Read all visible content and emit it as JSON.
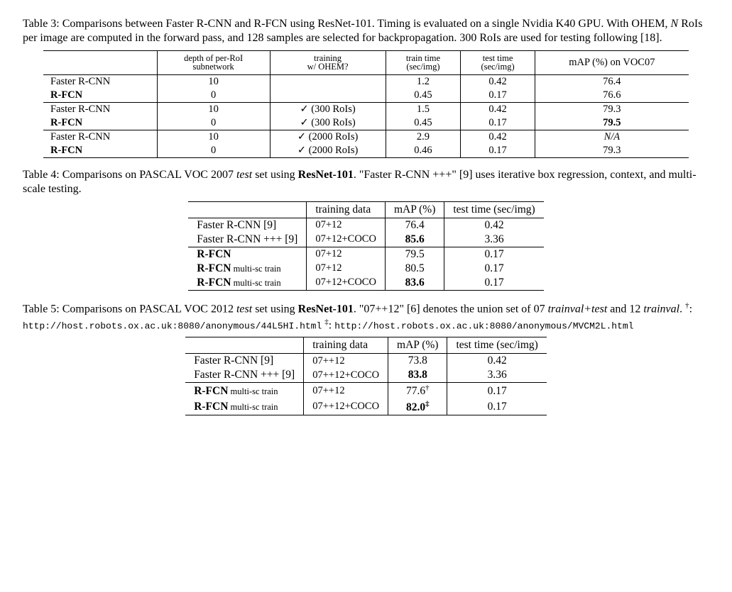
{
  "table3": {
    "caption_parts": {
      "label": "Table 3:",
      "text_a": " Comparisons between Faster R-CNN and R-FCN using ResNet-101. Timing is evaluated on a single Nvidia K40 GPU. With OHEM, ",
      "N": "N",
      "text_b": " RoIs per image are computed in the forward pass, and 128 samples are selected for backpropagation. 300 RoIs are used for testing following [18]."
    },
    "columns": {
      "depth_l1": "depth of per-RoI",
      "depth_l2": "subnetwork",
      "ohem_l1": "training",
      "ohem_l2": "w/ OHEM?",
      "train_l1": "train time",
      "train_l2": "(sec/img)",
      "test_l1": "test time",
      "test_l2": "(sec/img)",
      "map": "mAP (%) on VOC07"
    },
    "groups": [
      {
        "rows": [
          {
            "method": "Faster R-CNN",
            "bold": false,
            "depth": "10",
            "ohem": "",
            "train": "1.2",
            "test": "0.42",
            "map": "76.4",
            "map_dag": "",
            "map_bold": false,
            "map_ital": false
          },
          {
            "method": "R-FCN",
            "bold": true,
            "depth": "0",
            "ohem": "",
            "train": "0.45",
            "test": "0.17",
            "map": "76.6",
            "map_dag": "",
            "map_bold": false,
            "map_ital": false
          }
        ]
      },
      {
        "rows": [
          {
            "method": "Faster R-CNN",
            "bold": false,
            "depth": "10",
            "ohem": "✓ (300 RoIs)",
            "train": "1.5",
            "test": "0.42",
            "map": "79.3",
            "map_dag": "",
            "map_bold": false,
            "map_ital": false
          },
          {
            "method": "R-FCN",
            "bold": true,
            "depth": "0",
            "ohem": "✓ (300 RoIs)",
            "train": "0.45",
            "test": "0.17",
            "map": "79.5",
            "map_dag": "",
            "map_bold": true,
            "map_ital": false
          }
        ]
      },
      {
        "rows": [
          {
            "method": "Faster R-CNN",
            "bold": false,
            "depth": "10",
            "ohem": "✓ (2000 RoIs)",
            "train": "2.9",
            "test": "0.42",
            "map": "N/A",
            "map_dag": "",
            "map_bold": false,
            "map_ital": true
          },
          {
            "method": "R-FCN",
            "bold": true,
            "depth": "0",
            "ohem": "✓ (2000 RoIs)",
            "train": "0.46",
            "test": "0.17",
            "map": "79.3",
            "map_dag": "",
            "map_bold": false,
            "map_ital": false
          }
        ]
      }
    ],
    "style": {
      "font_family": "serif",
      "font_size_pt": 11,
      "header_fontsize_pt": 9,
      "rule_color": "#000000",
      "background_color": "#ffffff"
    }
  },
  "table4": {
    "caption_parts": {
      "label": "Table 4:",
      "text_a": " Comparisons on PASCAL VOC 2007 ",
      "test_it": "test",
      "text_b": " set using ",
      "resnet_bf": "ResNet-101",
      "text_c": ". \"Faster R-CNN +++\" [9] uses iterative box regression, context, and multi-scale testing."
    },
    "columns": {
      "train": "training data",
      "map": "mAP (%)",
      "time": "test time (sec/img)"
    },
    "groups": [
      {
        "rows": [
          {
            "method": "Faster R-CNN [9]",
            "bold": false,
            "suffix": "",
            "train": "07+12",
            "map": "76.4",
            "map_bold": false,
            "map_dag": "",
            "time": "0.42"
          },
          {
            "method": "Faster R-CNN +++ [9]",
            "bold": false,
            "suffix": "",
            "train": "07+12+COCO",
            "map": "85.6",
            "map_bold": true,
            "map_dag": "",
            "time": "3.36"
          }
        ]
      },
      {
        "rows": [
          {
            "method": "R-FCN",
            "bold": true,
            "suffix": "",
            "train": "07+12",
            "map": "79.5",
            "map_bold": false,
            "map_dag": "",
            "time": "0.17"
          },
          {
            "method": "R-FCN",
            "bold": true,
            "suffix": " multi-sc train",
            "train": "07+12",
            "map": "80.5",
            "map_bold": false,
            "map_dag": "",
            "time": "0.17"
          },
          {
            "method": "R-FCN",
            "bold": true,
            "suffix": " multi-sc train",
            "train": "07+12+COCO",
            "map": "83.6",
            "map_bold": true,
            "map_dag": "",
            "time": "0.17"
          }
        ]
      }
    ],
    "style": {
      "font_family": "serif",
      "font_size_pt": 12,
      "rule_color": "#000000",
      "background_color": "#ffffff"
    }
  },
  "table5": {
    "caption_parts": {
      "label": "Table 5:",
      "text_a": " Comparisons on PASCAL VOC 2012 ",
      "test_it": "test",
      "text_b": " set using ",
      "resnet_bf": "ResNet-101",
      "text_c": ". \"07++12\" [6] denotes the union set of 07 ",
      "trainval_it": "trainval+test",
      "text_d": " and 12 ",
      "trainval2_it": "trainval",
      "text_e": ". ",
      "dag1": "†",
      "colon": ": ",
      "url1": "http://host.robots.ox.ac.uk:8080/anonymous/44L5HI.html",
      "space": " ",
      "dag2": "‡",
      "colon2": ": ",
      "url2": "http://host.robots.ox.ac.uk:8080/anonymous/MVCM2L.html"
    },
    "columns": {
      "train": "training data",
      "map": "mAP (%)",
      "time": "test time (sec/img)"
    },
    "groups": [
      {
        "rows": [
          {
            "method": "Faster R-CNN [9]",
            "bold": false,
            "suffix": "",
            "train": "07++12",
            "map": "73.8",
            "map_bold": false,
            "map_dag": "",
            "time": "0.42"
          },
          {
            "method": "Faster R-CNN +++ [9]",
            "bold": false,
            "suffix": "",
            "train": "07++12+COCO",
            "map": "83.8",
            "map_bold": true,
            "map_dag": "",
            "time": "3.36"
          }
        ]
      },
      {
        "rows": [
          {
            "method": "R-FCN",
            "bold": true,
            "suffix": " multi-sc train",
            "train": "07++12",
            "map": "77.6",
            "map_bold": false,
            "map_dag": "†",
            "time": "0.17"
          },
          {
            "method": "R-FCN",
            "bold": true,
            "suffix": " multi-sc train",
            "train": "07++12+COCO",
            "map": "82.0",
            "map_bold": true,
            "map_dag": "‡",
            "time": "0.17"
          }
        ]
      }
    ],
    "style": {
      "font_family": "serif",
      "font_size_pt": 12,
      "rule_color": "#000000",
      "background_color": "#ffffff"
    }
  }
}
